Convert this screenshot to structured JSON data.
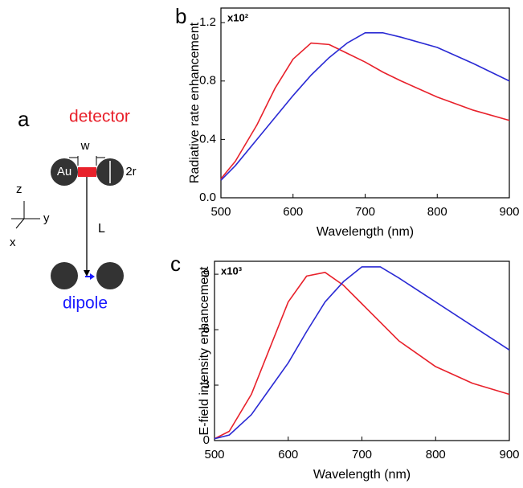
{
  "diagram": {
    "panel_label": "a",
    "detector": "detector",
    "gap": "w",
    "material": "Au",
    "diameter": "2r",
    "axis_z": "z",
    "axis_y": "y",
    "axis_x": "x",
    "distance": "L",
    "dipole": "dipole"
  },
  "chart_data": [
    {
      "type": "line",
      "panel_label": "b",
      "multiplier": "x10²",
      "xlabel": "Wavelength (nm)",
      "ylabel": "Radiative rate enhancement",
      "x": [
        500,
        520,
        550,
        575,
        600,
        625,
        650,
        675,
        700,
        725,
        750,
        800,
        850,
        900
      ],
      "series": [
        {
          "color": "#e8212b",
          "values": [
            0.13,
            0.25,
            0.5,
            0.75,
            0.95,
            1.06,
            1.05,
            0.99,
            0.93,
            0.86,
            0.8,
            0.69,
            0.6,
            0.53
          ]
        },
        {
          "color": "#2a2ad4",
          "values": [
            0.12,
            0.22,
            0.4,
            0.55,
            0.7,
            0.84,
            0.96,
            1.06,
            1.13,
            1.13,
            1.1,
            1.03,
            0.92,
            0.8
          ]
        }
      ],
      "xlim": [
        500,
        900
      ],
      "xticks": [
        500,
        600,
        700,
        800,
        900
      ],
      "ylim": [
        0,
        1.3
      ],
      "yticks": [
        {
          "value": 0,
          "label": "0.0"
        },
        0.4,
        0.8,
        1.2
      ]
    },
    {
      "type": "line",
      "panel_label": "c",
      "multiplier": "x10³",
      "xlabel": "Wavelength (nm)",
      "ylabel": "E-field intensity enhancement",
      "x": [
        500,
        520,
        550,
        575,
        600,
        625,
        650,
        675,
        700,
        725,
        750,
        800,
        850,
        900
      ],
      "series": [
        {
          "color": "#e8212b",
          "values": [
            0.1,
            0.5,
            2.5,
            5,
            7.5,
            8.9,
            9.1,
            8.4,
            7.4,
            6.4,
            5.4,
            4.0,
            3.1,
            2.5
          ]
        },
        {
          "color": "#2a2ad4",
          "values": [
            0.1,
            0.3,
            1.4,
            2.8,
            4.2,
            5.9,
            7.5,
            8.6,
            9.4,
            9.4,
            8.8,
            7.5,
            6.2,
            4.9
          ]
        }
      ],
      "xlim": [
        500,
        900
      ],
      "xticks": [
        500,
        600,
        700,
        800,
        900
      ],
      "ylim": [
        0,
        9.7
      ],
      "yticks": [
        0,
        3,
        6,
        9
      ]
    }
  ]
}
